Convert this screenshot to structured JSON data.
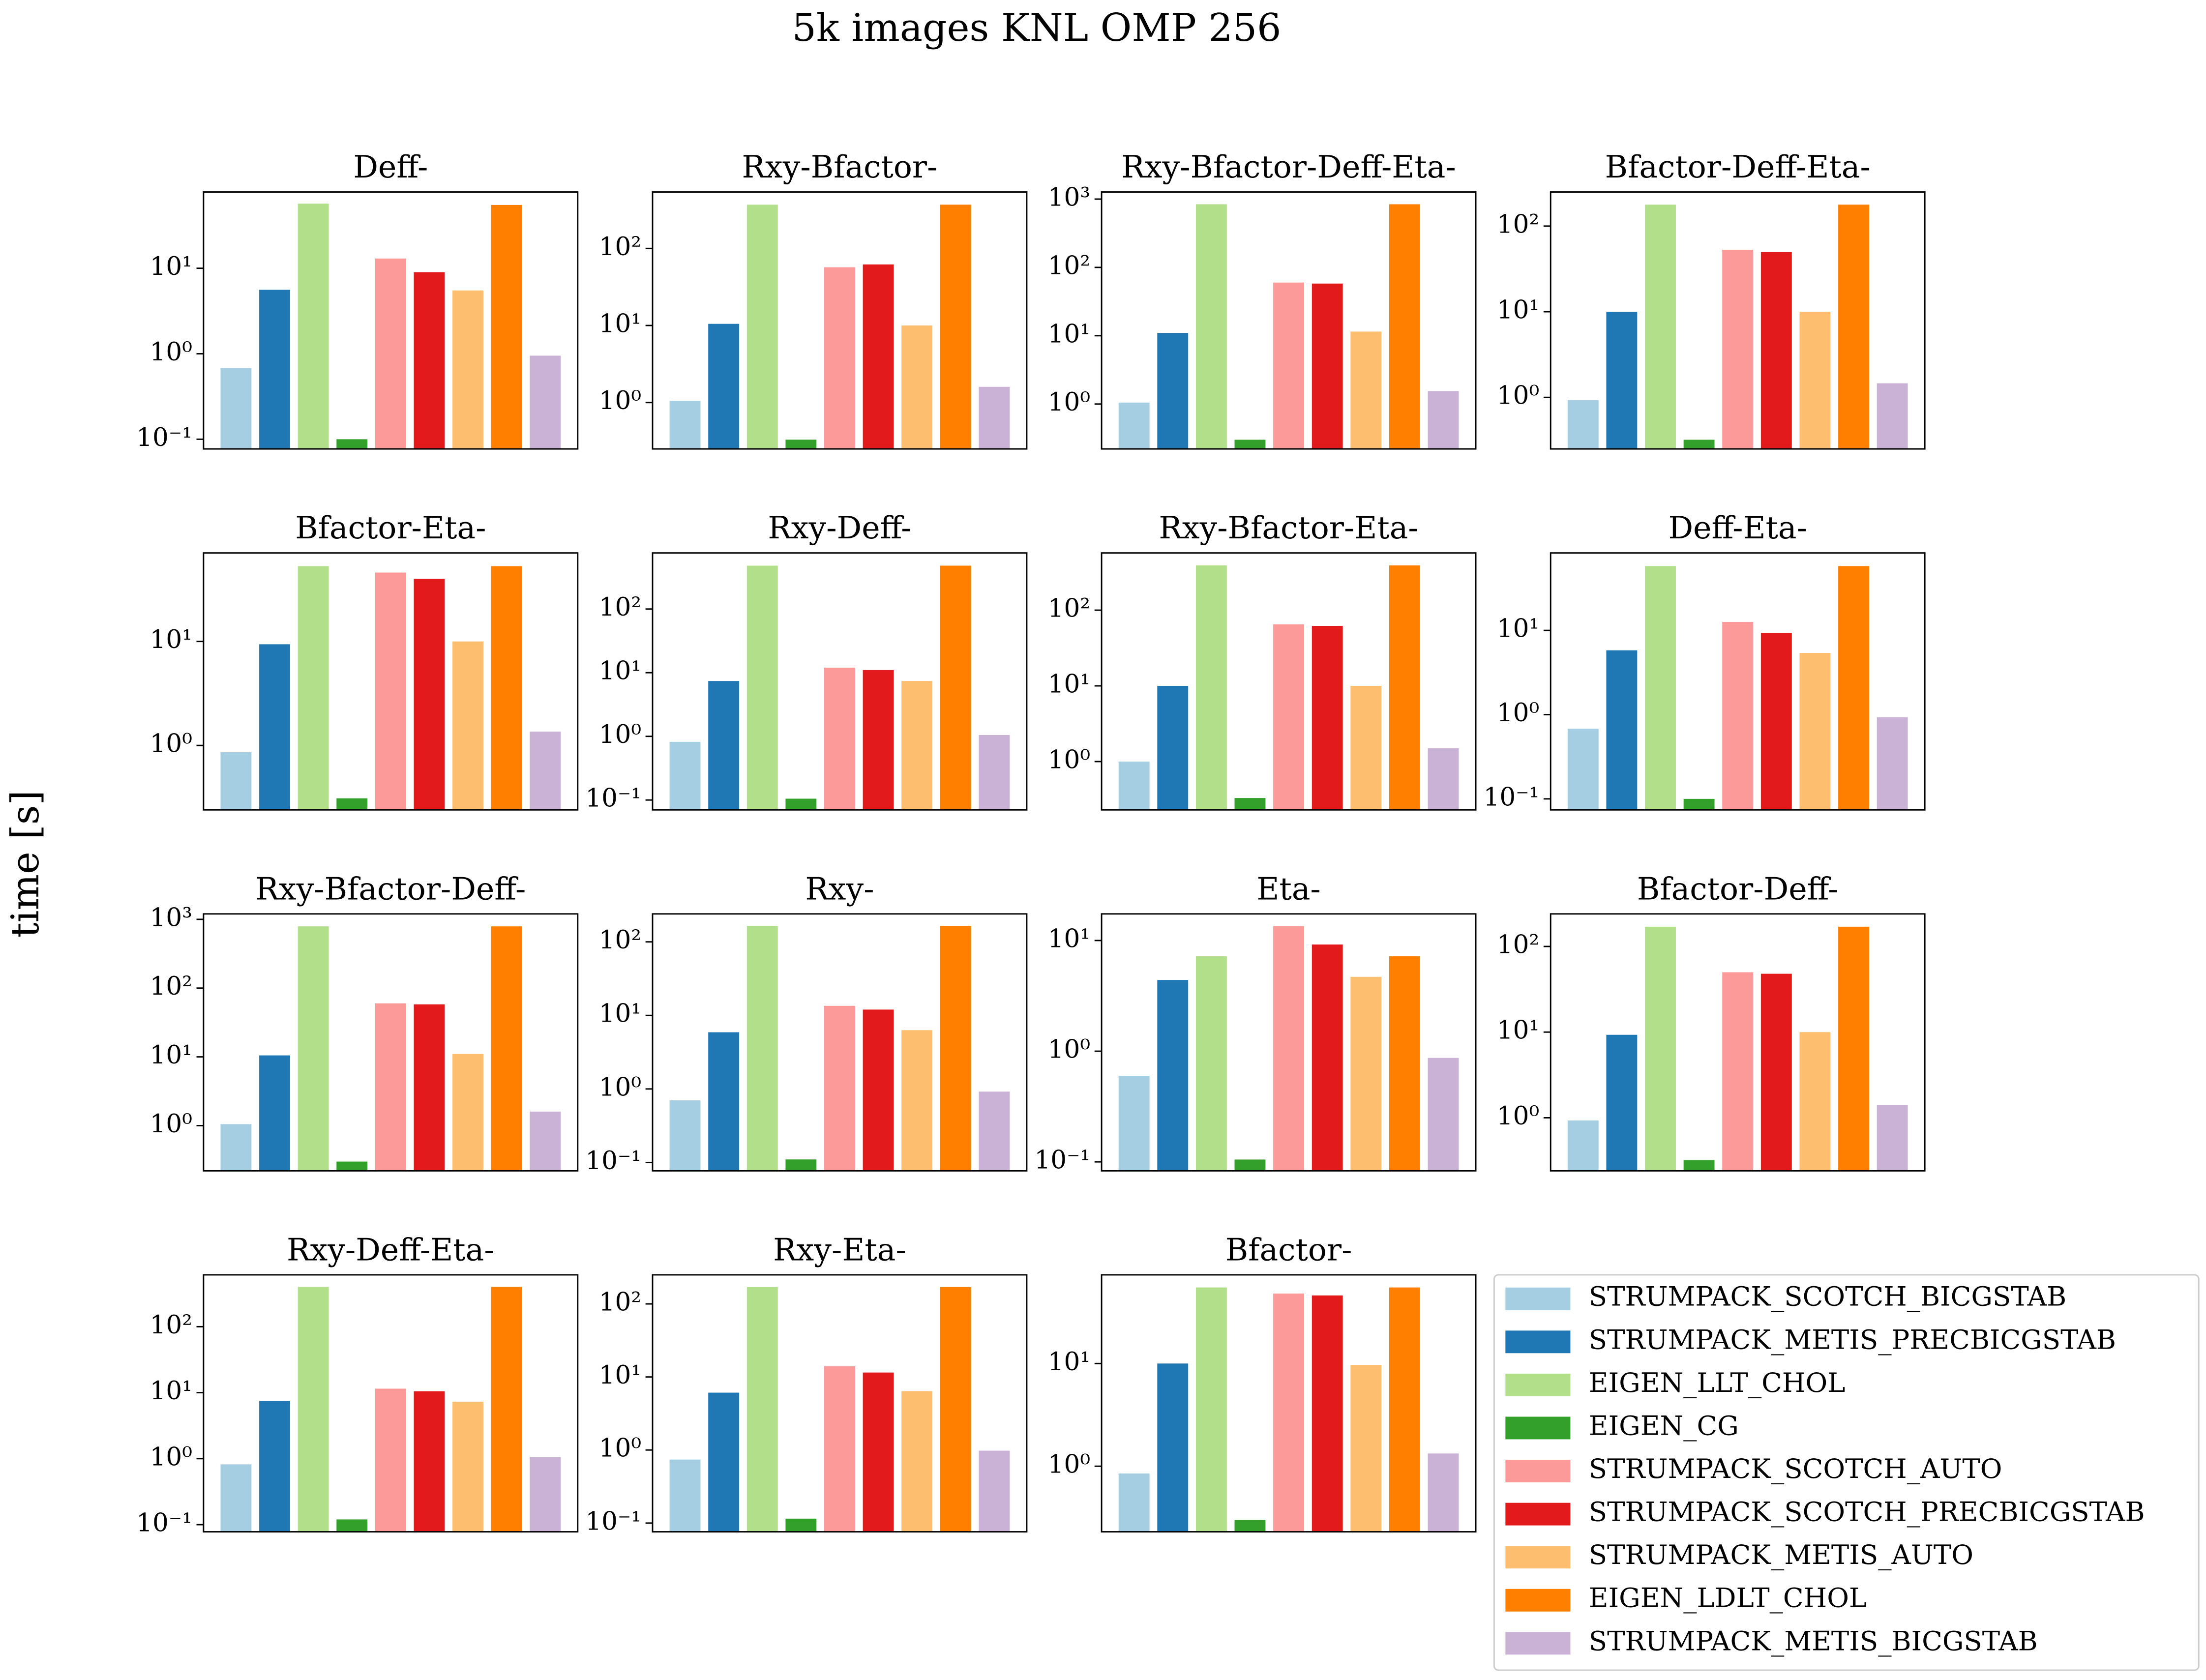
{
  "title": "5k images KNL OMP 256",
  "ylabel": "time [s]",
  "legend": {
    "names": [
      "STRUMPACK_SCOTCH_BICGSTAB",
      "STRUMPACK_METIS_PRECBICGSTAB",
      "EIGEN_LLT_CHOL",
      "EIGEN_CG",
      "STRUMPACK_SCOTCH_AUTO",
      "STRUMPACK_SCOTCH_PRECBICGSTAB",
      "STRUMPACK_METIS_AUTO",
      "EIGEN_LDLT_CHOL",
      "STRUMPACK_METIS_BICGSTAB"
    ],
    "colors": [
      "#a6cee3",
      "#1f78b4",
      "#b2df8a",
      "#33a02c",
      "#fb9a99",
      "#e31a1c",
      "#fdbf6f",
      "#ff7f00",
      "#cab2d6"
    ]
  },
  "chart_data": [
    {
      "type": "bar",
      "title": "Deff-",
      "yscale": "log",
      "values": [
        0.68,
        5.6,
        57,
        0.1,
        13,
        9,
        5.5,
        55,
        0.95
      ],
      "ylim": [
        0.077,
        78
      ],
      "yticks": [
        {
          "value": 0.1,
          "label": "10⁻¹"
        },
        {
          "value": 1,
          "label": "10⁰"
        },
        {
          "value": 10,
          "label": "10¹"
        }
      ]
    },
    {
      "type": "bar",
      "title": "Rxy-Bfactor-",
      "yscale": "log",
      "values": [
        1.05,
        10.5,
        370,
        0.33,
        57,
        62,
        10,
        370,
        1.6
      ],
      "ylim": [
        0.25,
        540
      ],
      "yticks": [
        {
          "value": 1,
          "label": "10⁰"
        },
        {
          "value": 10,
          "label": "10¹"
        },
        {
          "value": 100,
          "label": "10²"
        }
      ]
    },
    {
      "type": "bar",
      "title": "Rxy-Bfactor-Deff-Eta-",
      "yscale": "log",
      "values": [
        1.05,
        11,
        840,
        0.3,
        60,
        58,
        11.5,
        840,
        1.55
      ],
      "ylim": [
        0.22,
        1270
      ],
      "yticks": [
        {
          "value": 1,
          "label": "10⁰"
        },
        {
          "value": 10,
          "label": "10¹"
        },
        {
          "value": 100,
          "label": "10²"
        },
        {
          "value": 1000,
          "label": "10³"
        }
      ]
    },
    {
      "type": "bar",
      "title": "Bfactor-Deff-Eta-",
      "yscale": "log",
      "values": [
        0.93,
        10,
        178,
        0.32,
        53,
        50,
        10,
        178,
        1.46
      ],
      "ylim": [
        0.25,
        250
      ],
      "yticks": [
        {
          "value": 1,
          "label": "10⁰"
        },
        {
          "value": 10,
          "label": "10¹"
        },
        {
          "value": 100,
          "label": "10²"
        }
      ]
    },
    {
      "type": "bar",
      "title": "Bfactor-Eta-",
      "yscale": "log",
      "values": [
        0.86,
        9.4,
        53,
        0.31,
        46,
        40,
        10,
        53,
        1.36
      ],
      "ylim": [
        0.24,
        71
      ],
      "yticks": [
        {
          "value": 1,
          "label": "10⁰"
        },
        {
          "value": 10,
          "label": "10¹"
        }
      ]
    },
    {
      "type": "bar",
      "title": "Rxy-Deff-",
      "yscale": "log",
      "values": [
        0.82,
        7.4,
        480,
        0.105,
        12,
        11,
        7.4,
        480,
        1.05
      ],
      "ylim": [
        0.07,
        760
      ],
      "yticks": [
        {
          "value": 0.1,
          "label": "10⁻¹"
        },
        {
          "value": 1,
          "label": "10⁰"
        },
        {
          "value": 10,
          "label": "10¹"
        },
        {
          "value": 100,
          "label": "10²"
        }
      ]
    },
    {
      "type": "bar",
      "title": "Rxy-Bfactor-Eta-",
      "yscale": "log",
      "values": [
        1,
        10,
        390,
        0.33,
        65,
        62,
        10,
        390,
        1.5
      ],
      "ylim": [
        0.23,
        570
      ],
      "yticks": [
        {
          "value": 1,
          "label": "10⁰"
        },
        {
          "value": 10,
          "label": "10¹"
        },
        {
          "value": 100,
          "label": "10²"
        }
      ]
    },
    {
      "type": "bar",
      "title": "Deff-Eta-",
      "yscale": "log",
      "values": [
        0.68,
        5.8,
        58,
        0.1,
        12.6,
        9.3,
        5.4,
        58,
        0.93
      ],
      "ylim": [
        0.074,
        83
      ],
      "yticks": [
        {
          "value": 0.1,
          "label": "10⁻¹"
        },
        {
          "value": 1,
          "label": "10⁰"
        },
        {
          "value": 10,
          "label": "10¹"
        }
      ]
    },
    {
      "type": "bar",
      "title": "Rxy-Bfactor-Deff-",
      "yscale": "log",
      "values": [
        1.05,
        10.5,
        790,
        0.3,
        60,
        58,
        11,
        790,
        1.6
      ],
      "ylim": [
        0.22,
        1200
      ],
      "yticks": [
        {
          "value": 1,
          "label": "10⁰"
        },
        {
          "value": 10,
          "label": "10¹"
        },
        {
          "value": 100,
          "label": "10²"
        },
        {
          "value": 1000,
          "label": "10³"
        }
      ]
    },
    {
      "type": "bar",
      "title": "Rxy-",
      "yscale": "log",
      "values": [
        0.7,
        5.9,
        165,
        0.11,
        13.5,
        12,
        6.3,
        165,
        0.92
      ],
      "ylim": [
        0.077,
        240
      ],
      "yticks": [
        {
          "value": 0.1,
          "label": "10⁻¹"
        },
        {
          "value": 1,
          "label": "10⁰"
        },
        {
          "value": 10,
          "label": "10¹"
        },
        {
          "value": 100,
          "label": "10²"
        }
      ]
    },
    {
      "type": "bar",
      "title": "Eta-",
      "yscale": "log",
      "values": [
        0.6,
        4.4,
        7.2,
        0.105,
        13.5,
        9.2,
        4.7,
        7.2,
        0.87
      ],
      "ylim": [
        0.083,
        17.4
      ],
      "yticks": [
        {
          "value": 0.1,
          "label": "10⁻¹"
        },
        {
          "value": 1,
          "label": "10⁰"
        },
        {
          "value": 10,
          "label": "10¹"
        }
      ]
    },
    {
      "type": "bar",
      "title": "Bfactor-Deff-",
      "yscale": "log",
      "values": [
        0.93,
        9.3,
        170,
        0.32,
        50,
        48,
        10,
        170,
        1.4
      ],
      "ylim": [
        0.24,
        240
      ],
      "yticks": [
        {
          "value": 1,
          "label": "10⁰"
        },
        {
          "value": 10,
          "label": "10¹"
        },
        {
          "value": 100,
          "label": "10²"
        }
      ]
    },
    {
      "type": "bar",
      "title": "Rxy-Deff-Eta-",
      "yscale": "log",
      "values": [
        0.82,
        7.5,
        400,
        0.12,
        11.5,
        10.5,
        7.3,
        400,
        1.05
      ],
      "ylim": [
        0.078,
        610
      ],
      "yticks": [
        {
          "value": 0.1,
          "label": "10⁻¹"
        },
        {
          "value": 1,
          "label": "10⁰"
        },
        {
          "value": 10,
          "label": "10¹"
        },
        {
          "value": 100,
          "label": "10²"
        }
      ]
    },
    {
      "type": "bar",
      "title": "Rxy-Eta-",
      "yscale": "log",
      "values": [
        0.74,
        6.1,
        170,
        0.115,
        14,
        11.5,
        6.4,
        170,
        0.98
      ],
      "ylim": [
        0.076,
        250
      ],
      "yticks": [
        {
          "value": 0.1,
          "label": "10⁻¹"
        },
        {
          "value": 1,
          "label": "10⁰"
        },
        {
          "value": 10,
          "label": "10¹"
        },
        {
          "value": 100,
          "label": "10²"
        }
      ]
    },
    {
      "type": "bar",
      "title": "Bfactor-",
      "yscale": "log",
      "values": [
        0.85,
        10,
        55,
        0.3,
        48,
        46,
        9.7,
        55,
        1.33
      ],
      "ylim": [
        0.23,
        73
      ],
      "yticks": [
        {
          "value": 1,
          "label": "10⁰"
        },
        {
          "value": 10,
          "label": "10¹"
        }
      ]
    }
  ]
}
